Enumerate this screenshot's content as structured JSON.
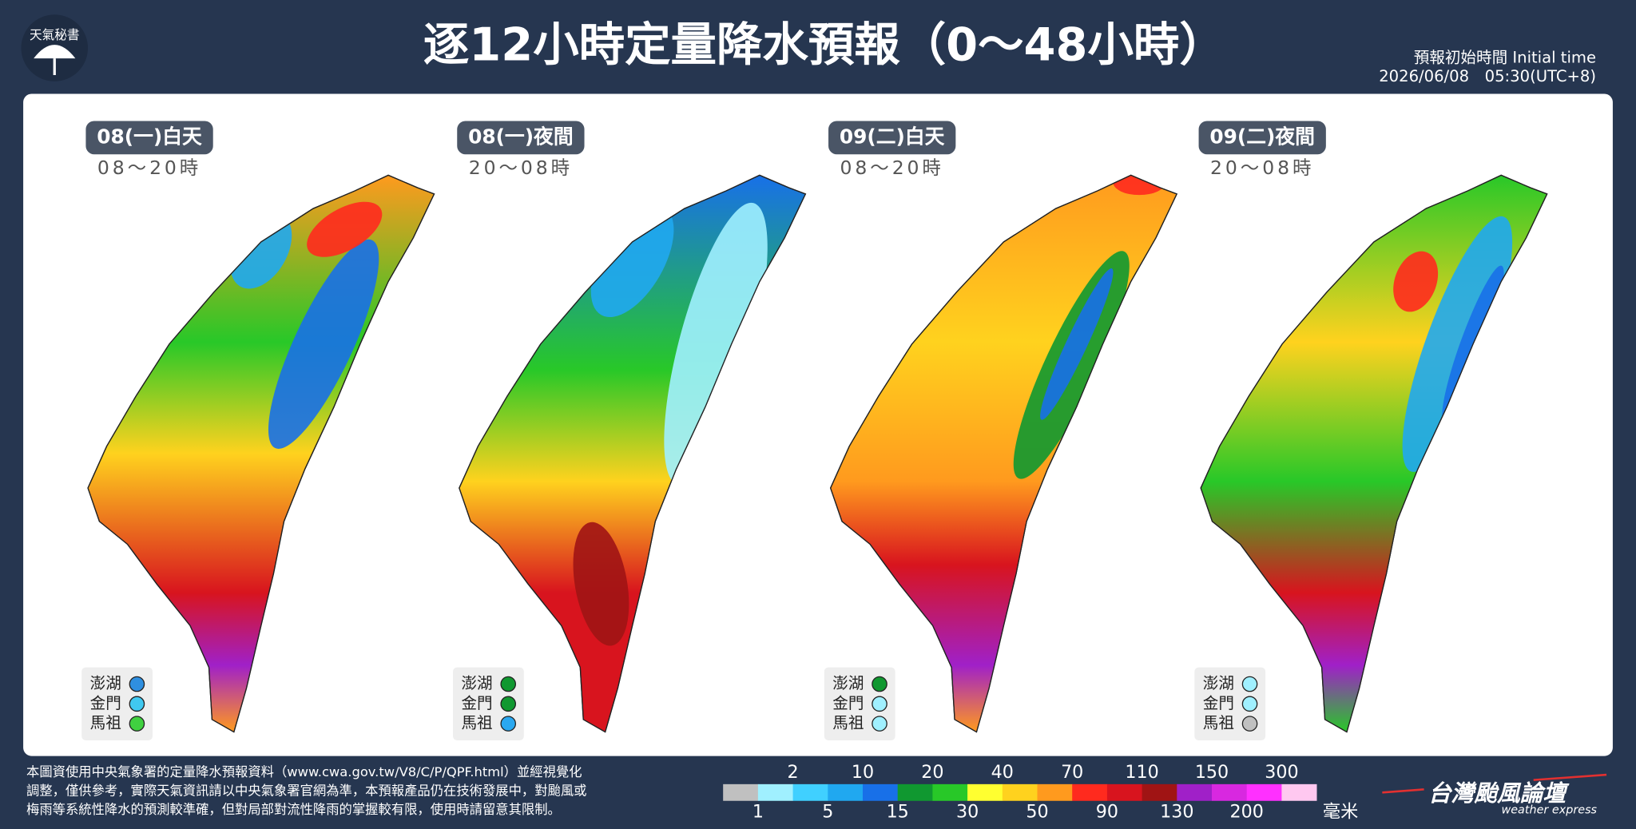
{
  "header": {
    "badge": "天氣秘書",
    "title": "逐12小時定量降水預報（0～48小時）",
    "initial_time_label": "預報初始時間 Initial time",
    "initial_time": "2026/06/08　05:30(UTC+8)"
  },
  "panels": [
    {
      "day": "08(一)白天",
      "hours": "08～20時",
      "islands": [
        {
          "name": "澎湖",
          "color": "#2f8fe0"
        },
        {
          "name": "金門",
          "color": "#40c8f0"
        },
        {
          "name": "馬祖",
          "color": "#40d040"
        }
      ]
    },
    {
      "day": "08(一)夜間",
      "hours": "20～08時",
      "islands": [
        {
          "name": "澎湖",
          "color": "#109830"
        },
        {
          "name": "金門",
          "color": "#109830"
        },
        {
          "name": "馬祖",
          "color": "#2aa8f0"
        }
      ]
    },
    {
      "day": "09(二)白天",
      "hours": "08～20時",
      "islands": [
        {
          "name": "澎湖",
          "color": "#109830"
        },
        {
          "name": "金門",
          "color": "#a0f0ff"
        },
        {
          "name": "馬祖",
          "color": "#a0f0ff"
        }
      ]
    },
    {
      "day": "09(二)夜間",
      "hours": "20～08時",
      "islands": [
        {
          "name": "澎湖",
          "color": "#a0f0ff"
        },
        {
          "name": "金門",
          "color": "#a0f0ff"
        },
        {
          "name": "馬祖",
          "color": "#c0c0c0"
        }
      ]
    }
  ],
  "legend": {
    "colors": [
      "#c0c0c0",
      "#a0f0ff",
      "#40d0ff",
      "#20a8f0",
      "#1870e8",
      "#109830",
      "#28c828",
      "#ffff30",
      "#ffd21e",
      "#ff9a1e",
      "#ff2a1e",
      "#d8141e",
      "#a01414",
      "#a020c8",
      "#d828e0",
      "#ff30ff",
      "#ffc8f0"
    ],
    "top_labels": [
      "2",
      "10",
      "20",
      "40",
      "70",
      "110",
      "150",
      "300"
    ],
    "bottom_labels": [
      "1",
      "5",
      "15",
      "30",
      "50",
      "90",
      "130",
      "200"
    ],
    "unit": "毫米"
  },
  "footer": {
    "note": [
      "本圖資使用中央氣象署的定量降水預報資料（www.cwa.gov.tw/V8/C/P/QPF.html）並經視覺化",
      "調整，僅供參考，實際天氣資訊請以中央氣象署官網為準，本預報產品仍在技術發展中，對颱風或",
      "梅雨等系統性降水的預測較準確，但對局部對流性降雨的掌握較有限，使用時請留意其限制。"
    ],
    "logo": "台灣颱風論壇",
    "logo_sub": "weather express"
  }
}
